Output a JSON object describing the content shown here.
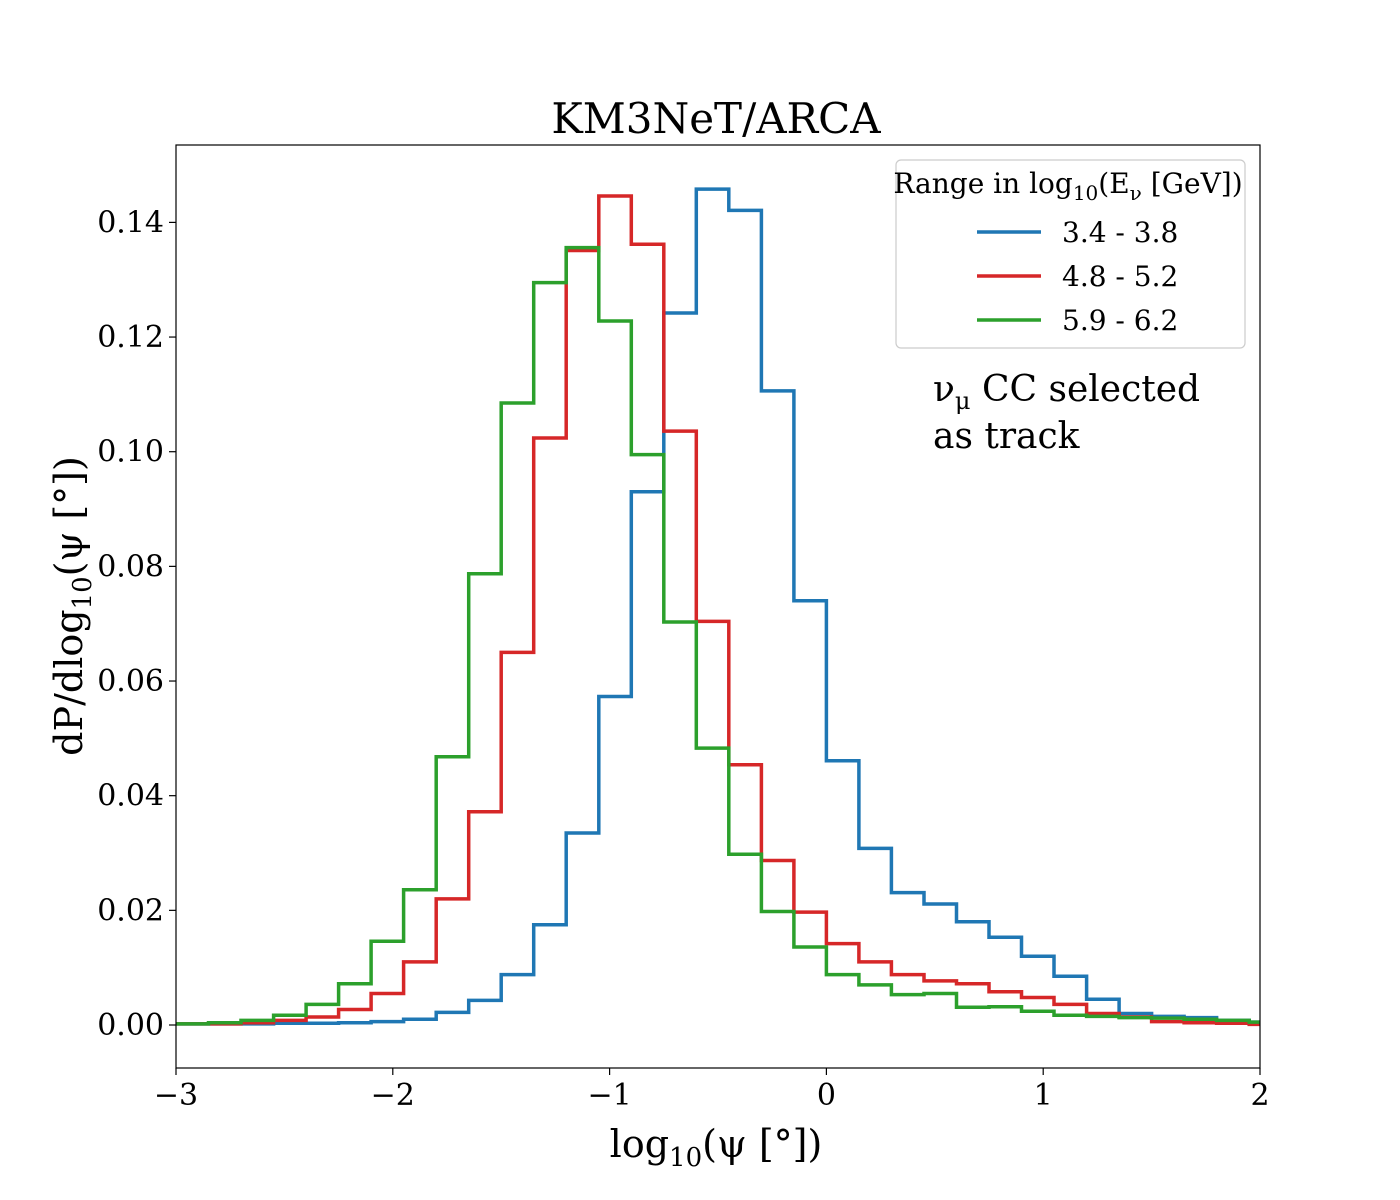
{
  "chart_data": {
    "type": "line",
    "style": "step-histogram",
    "title": "KM3NeT/ARCA",
    "xlabel": "log10(ψ [°])",
    "ylabel": "dP/dlog10(ψ [°])",
    "xlim": [
      -3,
      2
    ],
    "ylim": [
      -0.0075,
      0.1535
    ],
    "xticks": [
      -3,
      -2,
      -1,
      0,
      1,
      2
    ],
    "xtick_labels": [
      "−3",
      "−2",
      "−1",
      "0",
      "1",
      "2"
    ],
    "yticks": [
      0.0,
      0.02,
      0.04,
      0.06,
      0.08,
      0.1,
      0.12,
      0.14
    ],
    "ytick_labels": [
      "0.00",
      "0.02",
      "0.04",
      "0.06",
      "0.08",
      "0.10",
      "0.12",
      "0.14"
    ],
    "bin_edges": [
      -3.0,
      -2.85,
      -2.7,
      -2.55,
      -2.4,
      -2.25,
      -2.1,
      -1.95,
      -1.8,
      -1.65,
      -1.5,
      -1.35,
      -1.2,
      -1.05,
      -0.9,
      -0.75,
      -0.6,
      -0.45,
      -0.3,
      -0.15,
      0.0,
      0.15,
      0.3,
      0.45,
      0.6,
      0.75,
      0.9,
      1.05,
      1.2,
      1.35,
      1.5,
      1.65,
      1.8,
      1.95,
      2.0
    ],
    "legend_title": "Range in log10(Eν [GeV])",
    "legend_position": "top-right",
    "annotation_lines": [
      "νμ CC selected",
      "as track"
    ],
    "series": [
      {
        "name": "3.4 - 3.8",
        "color": "#1f77b4",
        "values": [
          0.0002,
          0.0002,
          0.0002,
          0.0003,
          0.0003,
          0.0004,
          0.0006,
          0.001,
          0.0022,
          0.0043,
          0.0088,
          0.0175,
          0.0335,
          0.0573,
          0.093,
          0.1242,
          0.1458,
          0.1421,
          0.1106,
          0.074,
          0.0461,
          0.0308,
          0.0231,
          0.0211,
          0.018,
          0.0153,
          0.012,
          0.0085,
          0.0045,
          0.002,
          0.0015,
          0.0013,
          0.0008,
          0.0005
        ]
      },
      {
        "name": "4.8 - 5.2",
        "color": "#d62728",
        "values": [
          0.0002,
          0.0002,
          0.0004,
          0.0008,
          0.0014,
          0.0027,
          0.0055,
          0.011,
          0.022,
          0.0372,
          0.065,
          0.1024,
          0.1351,
          0.1446,
          0.1362,
          0.1036,
          0.0704,
          0.0454,
          0.0287,
          0.0197,
          0.0142,
          0.011,
          0.0088,
          0.0077,
          0.0072,
          0.0058,
          0.0048,
          0.0036,
          0.002,
          0.0014,
          0.0006,
          0.0004,
          0.0003,
          0.0001
        ]
      },
      {
        "name": "5.9 - 6.2",
        "color": "#2ca02c",
        "values": [
          0.0002,
          0.0004,
          0.0008,
          0.0017,
          0.0036,
          0.0072,
          0.0146,
          0.0236,
          0.0468,
          0.0787,
          0.1085,
          0.1295,
          0.1356,
          0.1228,
          0.0995,
          0.0703,
          0.0483,
          0.0298,
          0.0198,
          0.0136,
          0.0088,
          0.007,
          0.0053,
          0.0055,
          0.0031,
          0.0032,
          0.0024,
          0.0017,
          0.0015,
          0.0013,
          0.0012,
          0.001,
          0.0008,
          0.0005
        ]
      }
    ]
  }
}
